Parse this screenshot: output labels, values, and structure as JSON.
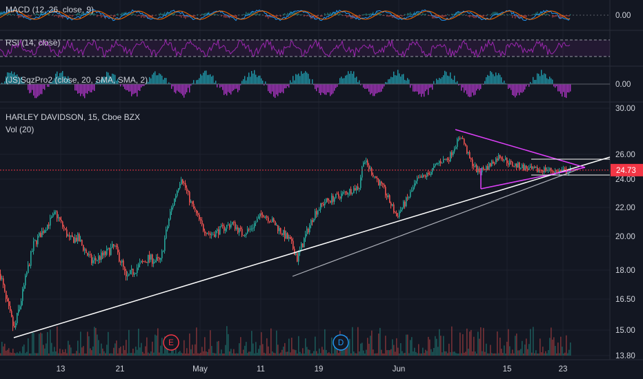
{
  "chart_data": {
    "type": "line",
    "main": {
      "title": "HARLEY DAVIDSON, 15, Cboe BZX",
      "volume_label": "Vol (20)",
      "last_price": "24.73",
      "y_ticks": [
        30.0,
        26.0,
        24.0,
        22.0,
        20.0,
        18.0,
        16.5,
        15.0,
        13.8
      ],
      "y_tick_labels": [
        "30.00",
        "26.00",
        "24.00",
        "22.00",
        "20.00",
        "18.00",
        "16.50",
        "15.00",
        "13.80"
      ],
      "x_tick_labels": [
        "13",
        "21",
        "May",
        "11",
        "19",
        "Jun",
        "15",
        "23"
      ],
      "events": [
        {
          "letter": "E",
          "color": "#f23645"
        },
        {
          "letter": "D",
          "color": "#2196f3"
        }
      ],
      "price_path": [
        [
          "Apr 6",
          17.8
        ],
        [
          "Apr 7",
          16.4
        ],
        [
          "Apr 8",
          15.0
        ],
        [
          "Apr 9",
          16.8
        ],
        [
          "Apr 10",
          19.5
        ],
        [
          "Apr 13",
          21.6
        ],
        [
          "Apr 14",
          19.8
        ],
        [
          "Apr 15",
          19.9
        ],
        [
          "Apr 16",
          18.5
        ],
        [
          "Apr 17",
          18.9
        ],
        [
          "Apr 20",
          19.4
        ],
        [
          "Apr 21",
          18.4
        ],
        [
          "Apr 22",
          17.5
        ],
        [
          "Apr 23",
          18.1
        ],
        [
          "Apr 24",
          18.7
        ],
        [
          "Apr 27",
          18.5
        ],
        [
          "Apr 28",
          21.6
        ],
        [
          "Apr 29",
          24.2
        ],
        [
          "Apr 30",
          22.3
        ],
        [
          "May 1",
          20.6
        ],
        [
          "May 4",
          20.1
        ],
        [
          "May 5",
          20.5
        ],
        [
          "May 6",
          20.9
        ],
        [
          "May 7",
          20.2
        ],
        [
          "May 8",
          20.5
        ],
        [
          "May 11",
          21.6
        ],
        [
          "May 12",
          21.0
        ],
        [
          "May 13",
          20.3
        ],
        [
          "May 14",
          19.8
        ],
        [
          "May 15",
          19.0
        ],
        [
          "May 18",
          18.0
        ],
        [
          "May 19",
          19.8
        ],
        [
          "May 20",
          21.6
        ],
        [
          "May 21",
          22.4
        ],
        [
          "May 22",
          22.8
        ],
        [
          "May 26",
          23.5
        ],
        [
          "May 27",
          25.6
        ],
        [
          "May 28",
          24.4
        ],
        [
          "May 29",
          23.2
        ],
        [
          "Jun 1",
          21.4
        ],
        [
          "Jun 2",
          22.6
        ],
        [
          "Jun 3",
          23.9
        ],
        [
          "Jun 4",
          24.4
        ],
        [
          "Jun 5",
          25.4
        ],
        [
          "Jun 8",
          25.7
        ],
        [
          "Jun 9",
          26.9
        ],
        [
          "Jun 10",
          27.6
        ],
        [
          "Jun 11",
          25.6
        ],
        [
          "Jun 12",
          24.6
        ],
        [
          "Jun 15",
          25.0
        ],
        [
          "Jun 16",
          25.9
        ],
        [
          "Jun 17",
          25.2
        ],
        [
          "Jun 18",
          25.0
        ],
        [
          "Jun 19",
          24.7
        ],
        [
          "Jun 22",
          24.8
        ],
        [
          "Jun 23",
          24.6
        ],
        [
          "Jun 24",
          24.7
        ]
      ]
    },
    "panes": [
      {
        "label": "MACD (12, 26, close, 9)",
        "value": "0.00"
      },
      {
        "label": "RSI (14, close)",
        "value": ""
      },
      {
        "label": "(JS)SqzPro2 (close, 20, SMA, SMA, 2)",
        "value": "0.00"
      }
    ],
    "colors": {
      "background": "#131722",
      "up": "#26a69a",
      "down": "#ef5350",
      "last_price": "#f23645",
      "rsi": "#9c27b0",
      "triangle": "#e040fb",
      "trendline": "#ffffff",
      "squeeze_pos": "#26c6da",
      "squeeze_neg": "#e040fb"
    }
  }
}
